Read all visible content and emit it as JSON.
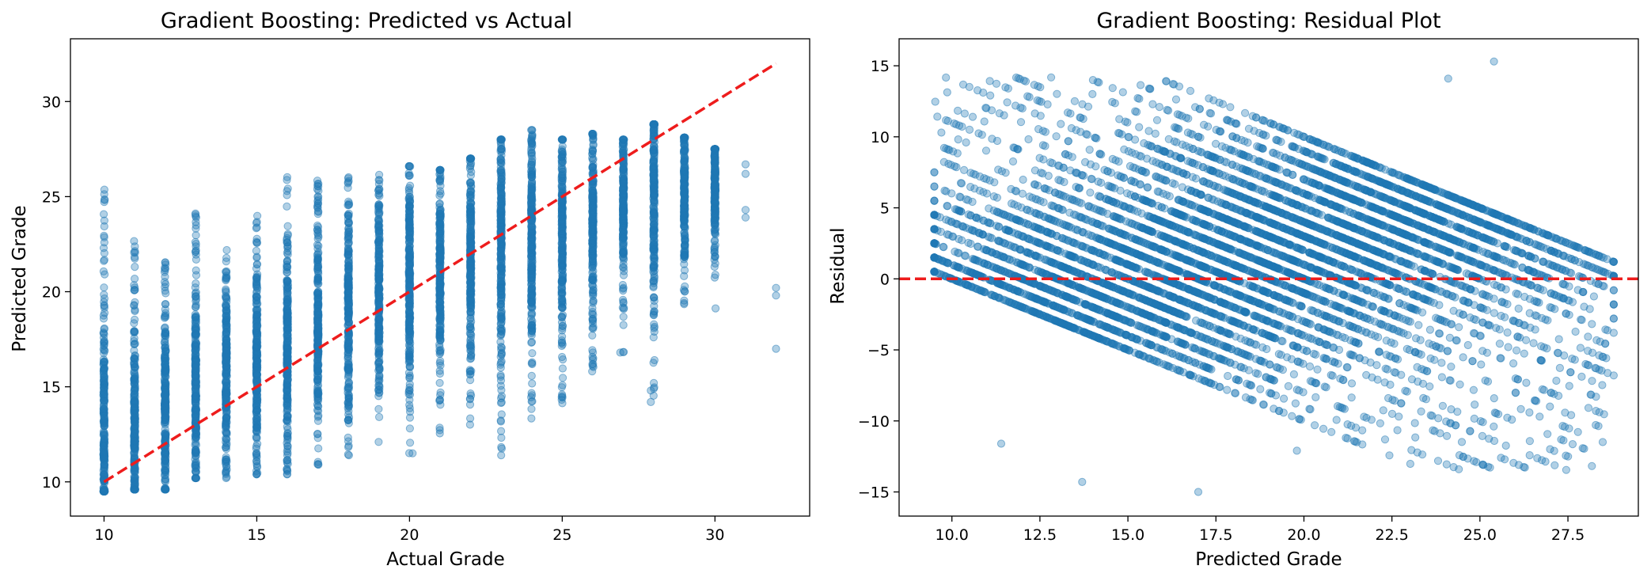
{
  "chart_data": [
    {
      "type": "scatter",
      "title": "Gradient Boosting: Predicted vs Actual",
      "xlabel": "Actual Grade",
      "ylabel": "Predicted Grade",
      "xlim": [
        8.9,
        33.1
      ],
      "ylim": [
        8.2,
        33.3
      ],
      "xticks": [
        10,
        15,
        20,
        25,
        30
      ],
      "yticks": [
        10,
        15,
        20,
        25,
        30
      ],
      "grid": false,
      "marker_color": "#1f77b4",
      "marker_alpha": 0.35,
      "reference_line": {
        "from": [
          10,
          10
        ],
        "to": [
          32,
          32
        ],
        "color": "#ee1c1c",
        "style": "dashed"
      },
      "series": [
        {
          "columns": [
            {
              "x": 10,
              "y_min": 9.5,
              "y_max": 25.4,
              "center": 12.0
            },
            {
              "x": 11,
              "y_min": 9.6,
              "y_max": 22.8,
              "center": 13.0
            },
            {
              "x": 12,
              "y_min": 9.6,
              "y_max": 22.3,
              "center": 14.0
            },
            {
              "x": 13,
              "y_min": 10.2,
              "y_max": 24.6,
              "center": 15.0
            },
            {
              "x": 14,
              "y_min": 10.2,
              "y_max": 23.1,
              "center": 15.8
            },
            {
              "x": 15,
              "y_min": 10.4,
              "y_max": 24.2,
              "center": 16.6
            },
            {
              "x": 16,
              "y_min": 10.4,
              "y_max": 26.1,
              "center": 17.4
            },
            {
              "x": 17,
              "y_min": 10.9,
              "y_max": 25.9,
              "center": 18.2
            },
            {
              "x": 18,
              "y_min": 11.2,
              "y_max": 26.3,
              "center": 19.0
            },
            {
              "x": 19,
              "y_min": 12.1,
              "y_max": 26.3,
              "center": 19.8
            },
            {
              "x": 20,
              "y_min": 11.5,
              "y_max": 26.6,
              "center": 20.5
            },
            {
              "x": 21,
              "y_min": 12.4,
              "y_max": 26.4,
              "center": 21.2
            },
            {
              "x": 22,
              "y_min": 12.6,
              "y_max": 27.0,
              "center": 21.9
            },
            {
              "x": 23,
              "y_min": 11.4,
              "y_max": 28.0,
              "center": 22.4
            },
            {
              "x": 24,
              "y_min": 12.7,
              "y_max": 28.5,
              "center": 22.9
            },
            {
              "x": 25,
              "y_min": 13.8,
              "y_max": 28.0,
              "center": 23.4
            },
            {
              "x": 26,
              "y_min": 15.6,
              "y_max": 28.3,
              "center": 24.0
            },
            {
              "x": 27,
              "y_min": 16.8,
              "y_max": 28.0,
              "center": 24.6
            },
            {
              "x": 28,
              "y_min": 14.3,
              "y_max": 28.8,
              "center": 25.2
            },
            {
              "x": 29,
              "y_min": 18.2,
              "y_max": 28.1,
              "center": 25.4
            },
            {
              "x": 30,
              "y_min": 18.8,
              "y_max": 27.5,
              "center": 25.4
            }
          ],
          "points": [
            {
              "x": 31,
              "y": 26.7
            },
            {
              "x": 31,
              "y": 26.2
            },
            {
              "x": 31,
              "y": 24.3
            },
            {
              "x": 31,
              "y": 23.9
            },
            {
              "x": 32,
              "y": 20.2
            },
            {
              "x": 32,
              "y": 19.8
            },
            {
              "x": 32,
              "y": 17.0
            },
            {
              "x": 27.9,
              "y": 14.8
            },
            {
              "x": 27.9,
              "y": 14.2
            },
            {
              "x": 26.9,
              "y": 16.8
            },
            {
              "x": 23.0,
              "y": 11.4
            },
            {
              "x": 20.1,
              "y": 11.5
            }
          ]
        }
      ]
    },
    {
      "type": "scatter",
      "title": "Gradient Boosting: Residual Plot",
      "xlabel": "Predicted Grade",
      "ylabel": "Residual",
      "xlim": [
        8.5,
        29.5
      ],
      "ylim": [
        -16.7,
        16.9
      ],
      "xticks": [
        10.0,
        12.5,
        15.0,
        17.5,
        20.0,
        22.5,
        25.0,
        27.5
      ],
      "xtick_labels": [
        "10.0",
        "12.5",
        "15.0",
        "17.5",
        "20.0",
        "22.5",
        "25.0",
        "27.5"
      ],
      "yticks": [
        -15,
        -10,
        -5,
        0,
        5,
        10,
        15
      ],
      "ytick_labels": [
        "−15",
        "−10",
        "−5",
        "0",
        "5",
        "10",
        "15"
      ],
      "grid": false,
      "marker_color": "#1f77b4",
      "marker_alpha": 0.35,
      "reference_line": {
        "y": 0,
        "color": "#ee1c1c",
        "style": "dashed"
      },
      "series": [
        {
          "actual_grades": [
            10,
            11,
            12,
            13,
            14,
            15,
            16,
            17,
            18,
            19,
            20,
            21,
            22,
            23,
            24,
            25,
            26,
            27,
            28,
            29,
            30
          ],
          "predicted_range": [
            9.5,
            28.8
          ],
          "points": [
            {
              "x": 25.4,
              "y": 15.3
            },
            {
              "x": 13.7,
              "y": -14.3
            },
            {
              "x": 17.0,
              "y": -15.0
            },
            {
              "x": 11.4,
              "y": -11.6
            },
            {
              "x": 19.8,
              "y": -12.1
            },
            {
              "x": 24.1,
              "y": 14.1
            }
          ]
        }
      ]
    }
  ]
}
